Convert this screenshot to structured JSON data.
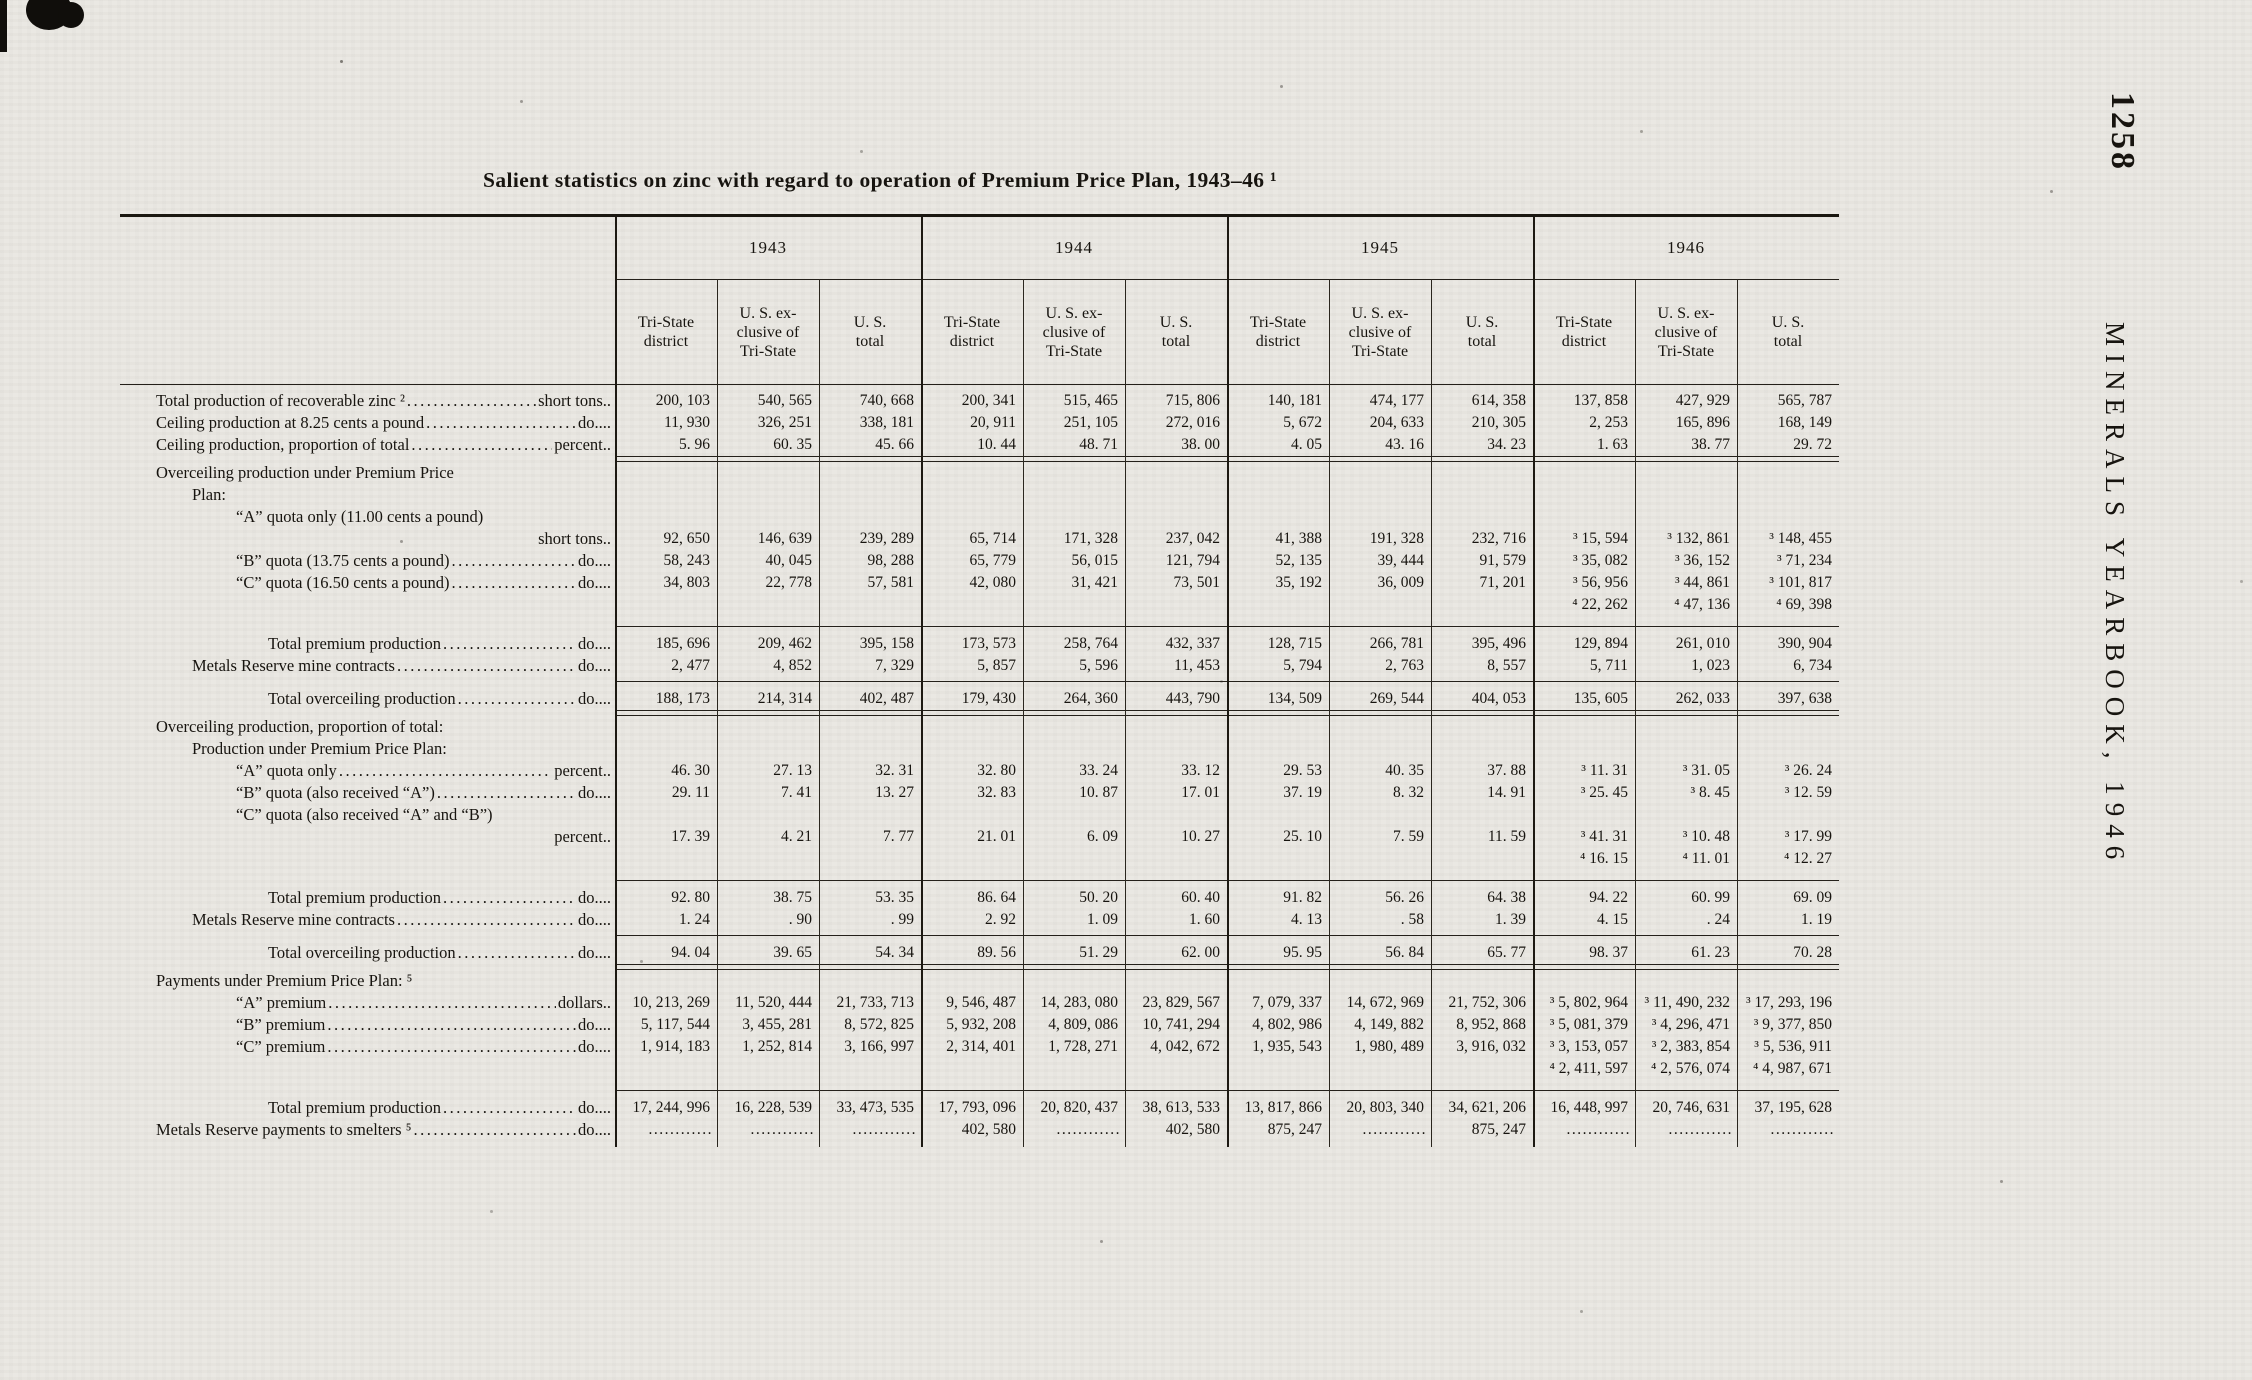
{
  "page": {
    "title": "Salient statistics on zinc with regard to operation of Premium Price Plan, 1943–46 ¹",
    "page_number": "1258",
    "side_label": "MINERALS YEARBOOK, 1946"
  },
  "table": {
    "years": [
      "1943",
      "1944",
      "1945",
      "1946"
    ],
    "sub_headers": [
      [
        "Tri-State",
        "district"
      ],
      [
        "U. S. ex-",
        "clusive of",
        "Tri-State"
      ],
      [
        "U. S.",
        "total"
      ]
    ],
    "rows": [
      {
        "kind": "data",
        "indent": 0,
        "label": "Total production of recoverable zinc ²",
        "unit": "short tons..",
        "values": [
          "200, 103",
          "540, 565",
          "740, 668",
          "200, 341",
          "515, 465",
          "715, 806",
          "140, 181",
          "474, 177",
          "614, 358",
          "137, 858",
          "427, 929",
          "565, 787"
        ]
      },
      {
        "kind": "data",
        "indent": 0,
        "label": "Ceiling production at 8.25 cents a pound",
        "unit": "do....",
        "values": [
          "11, 930",
          "326, 251",
          "338, 181",
          "20, 911",
          "251, 105",
          "272, 016",
          "5, 672",
          "204, 633",
          "210, 305",
          "2, 253",
          "165, 896",
          "168, 149"
        ]
      },
      {
        "kind": "data",
        "indent": 0,
        "label": "Ceiling production, proportion of total",
        "unit": "percent..",
        "values": [
          "5. 96",
          "60. 35",
          "45. 66",
          "10. 44",
          "48. 71",
          "38. 00",
          "4. 05",
          "43. 16",
          "34. 23",
          "1. 63",
          "38. 77",
          "29. 72"
        ]
      },
      {
        "kind": "rule2"
      },
      {
        "kind": "section",
        "indent": 0,
        "label": "Overceiling  production  under  Premium  Price"
      },
      {
        "kind": "section",
        "indent": 1,
        "label": "Plan:"
      },
      {
        "kind": "data",
        "twoline": true,
        "indent": 2,
        "label": "“A” quota only (11.00 cents a pound)",
        "unit": "short tons..",
        "values": [
          "92, 650",
          "146, 639",
          "239, 289",
          "65, 714",
          "171, 328",
          "237, 042",
          "41, 388",
          "191, 328",
          "232, 716",
          "³ 15, 594",
          "³ 132, 861",
          "³ 148, 455"
        ]
      },
      {
        "kind": "data",
        "indent": 2,
        "label": "“B” quota (13.75 cents a pound)",
        "unit": "do....",
        "values": [
          "58, 243",
          "40, 045",
          "98, 288",
          "65, 779",
          "56, 015",
          "121, 794",
          "52, 135",
          "39, 444",
          "91, 579",
          "³ 35, 082",
          "³ 36, 152",
          "³ 71, 234"
        ]
      },
      {
        "kind": "data",
        "indent": 2,
        "label": "“C” quota (16.50 cents a pound)",
        "unit": "do....",
        "values": [
          "34, 803",
          "22, 778",
          "57, 581",
          "42, 080",
          "31, 421",
          "73, 501",
          "35, 192",
          "36, 009",
          "71, 201",
          "³ 56, 956",
          "³ 44, 861",
          "³ 101, 817"
        ]
      },
      {
        "kind": "extra",
        "values": [
          "",
          "",
          "",
          "",
          "",
          "",
          "",
          "",
          "",
          "⁴ 22, 262",
          "⁴ 47, 136",
          "⁴ 69, 398"
        ]
      },
      {
        "kind": "rule1",
        "gap": "mt10 mb6"
      },
      {
        "kind": "data",
        "indent": 3,
        "label": "Total premium production",
        "unit": "do....",
        "values": [
          "185, 696",
          "209, 462",
          "395, 158",
          "173, 573",
          "258, 764",
          "432, 337",
          "128, 715",
          "266, 781",
          "395, 496",
          "129, 894",
          "261, 010",
          "390, 904"
        ]
      },
      {
        "kind": "data",
        "indent": 1,
        "label": "Metals Reserve mine contracts",
        "unit": "do....",
        "values": [
          "2, 477",
          "4, 852",
          "7, 329",
          "5, 857",
          "5, 596",
          "11, 453",
          "5, 794",
          "2, 763",
          "8, 557",
          "5, 711",
          "1, 023",
          "6, 734"
        ]
      },
      {
        "kind": "rule1",
        "gap": "mt4 mb6"
      },
      {
        "kind": "data",
        "indent": 3,
        "label": "Total overceiling production",
        "unit": "do....",
        "values": [
          "188, 173",
          "214, 314",
          "402, 487",
          "179, 430",
          "264, 360",
          "443, 790",
          "134, 509",
          "269, 544",
          "404, 053",
          "135, 605",
          "262, 033",
          "397, 638"
        ]
      },
      {
        "kind": "rule2"
      },
      {
        "kind": "section",
        "indent": 0,
        "label": "Overceiling production, proportion of total:"
      },
      {
        "kind": "section",
        "indent": 1,
        "label": "Production under Premium Price Plan:"
      },
      {
        "kind": "data",
        "indent": 2,
        "label": "“A” quota only",
        "unit": "percent..",
        "values": [
          "46. 30",
          "27. 13",
          "32. 31",
          "32. 80",
          "33. 24",
          "33. 12",
          "29. 53",
          "40. 35",
          "37. 88",
          "³ 11. 31",
          "³ 31. 05",
          "³ 26. 24"
        ]
      },
      {
        "kind": "data",
        "indent": 2,
        "label": "“B” quota (also received “A”)",
        "unit": "do....",
        "values": [
          "29. 11",
          "7. 41",
          "13. 27",
          "32. 83",
          "10. 87",
          "17. 01",
          "37. 19",
          "8. 32",
          "14. 91",
          "³ 25. 45",
          "³ 8. 45",
          "³ 12. 59"
        ]
      },
      {
        "kind": "data",
        "twoline": true,
        "indent": 2,
        "label": "“C” quota (also received “A” and “B”)",
        "unit": "percent..",
        "values": [
          "17. 39",
          "4. 21",
          "7. 77",
          "21. 01",
          "6. 09",
          "10. 27",
          "25. 10",
          "7. 59",
          "11. 59",
          "³ 41. 31",
          "³ 10. 48",
          "³ 17. 99"
        ]
      },
      {
        "kind": "extra",
        "values": [
          "",
          "",
          "",
          "",
          "",
          "",
          "",
          "",
          "",
          "⁴ 16. 15",
          "⁴ 11. 01",
          "⁴ 12. 27"
        ]
      },
      {
        "kind": "rule1",
        "gap": "mt10 mb6"
      },
      {
        "kind": "data",
        "indent": 3,
        "label": "Total premium production",
        "unit": "do....",
        "values": [
          "92. 80",
          "38. 75",
          "53. 35",
          "86. 64",
          "50. 20",
          "60. 40",
          "91. 82",
          "56. 26",
          "64. 38",
          "94. 22",
          "60. 99",
          "69. 09"
        ]
      },
      {
        "kind": "data",
        "indent": 1,
        "label": "Metals Reserve mine contracts",
        "unit": "do....",
        "values": [
          "1. 24",
          ". 90",
          ". 99",
          "2. 92",
          "1. 09",
          "1. 60",
          "4. 13",
          ". 58",
          "1. 39",
          "4. 15",
          ". 24",
          "1. 19"
        ]
      },
      {
        "kind": "rule1",
        "gap": "mt4 mb6"
      },
      {
        "kind": "data",
        "indent": 3,
        "label": "Total overceiling production",
        "unit": "do....",
        "values": [
          "94. 04",
          "39. 65",
          "54. 34",
          "89. 56",
          "51. 29",
          "62. 00",
          "95. 95",
          "56. 84",
          "65. 77",
          "98. 37",
          "61. 23",
          "70. 28"
        ]
      },
      {
        "kind": "rule2"
      },
      {
        "kind": "section",
        "indent": 0,
        "label": "Payments under Premium Price Plan: ⁵"
      },
      {
        "kind": "data",
        "indent": 2,
        "label": "“A” premium",
        "unit": "dollars..",
        "values": [
          "10, 213, 269",
          "11, 520, 444",
          "21, 733, 713",
          "9, 546, 487",
          "14, 283, 080",
          "23, 829, 567",
          "7, 079, 337",
          "14, 672, 969",
          "21, 752, 306",
          "³ 5, 802, 964",
          "³ 11, 490, 232",
          "³ 17, 293, 196"
        ]
      },
      {
        "kind": "data",
        "indent": 2,
        "label": "“B” premium",
        "unit": "do....",
        "values": [
          "5, 117, 544",
          "3, 455, 281",
          "8, 572, 825",
          "5, 932, 208",
          "4, 809, 086",
          "10, 741, 294",
          "4, 802, 986",
          "4, 149, 882",
          "8, 952, 868",
          "³ 5, 081, 379",
          "³ 4, 296, 471",
          "³ 9, 377, 850"
        ]
      },
      {
        "kind": "data",
        "indent": 2,
        "label": "“C” premium",
        "unit": "do....",
        "values": [
          "1, 914, 183",
          "1, 252, 814",
          "3, 166, 997",
          "2, 314, 401",
          "1, 728, 271",
          "4, 042, 672",
          "1, 935, 543",
          "1, 980, 489",
          "3, 916, 032",
          "³ 3, 153, 057",
          "³ 2, 383, 854",
          "³ 5, 536, 911"
        ]
      },
      {
        "kind": "extra",
        "values": [
          "",
          "",
          "",
          "",
          "",
          "",
          "",
          "",
          "",
          "⁴ 2, 411, 597",
          "⁴ 2, 576, 074",
          "⁴ 4, 987, 671"
        ]
      },
      {
        "kind": "rule1",
        "gap": "mt10 mb6"
      },
      {
        "kind": "data",
        "indent": 3,
        "label": "Total premium production",
        "unit": "do....",
        "values": [
          "17, 244, 996",
          "16, 228, 539",
          "33, 473, 535",
          "17, 793, 096",
          "20, 820, 437",
          "38, 613, 533",
          "13, 817, 866",
          "20, 803, 340",
          "34, 621, 206",
          "16, 448, 997",
          "20, 746, 631",
          "37, 195, 628"
        ]
      },
      {
        "kind": "data",
        "indent": 0,
        "label": "Metals Reserve payments to smelters ⁵",
        "unit": "do....",
        "values": [
          "............",
          "............",
          "............",
          "402, 580",
          "............",
          "402, 580",
          "875, 247",
          "............",
          "875, 247",
          "............",
          "............",
          "............"
        ]
      }
    ]
  }
}
